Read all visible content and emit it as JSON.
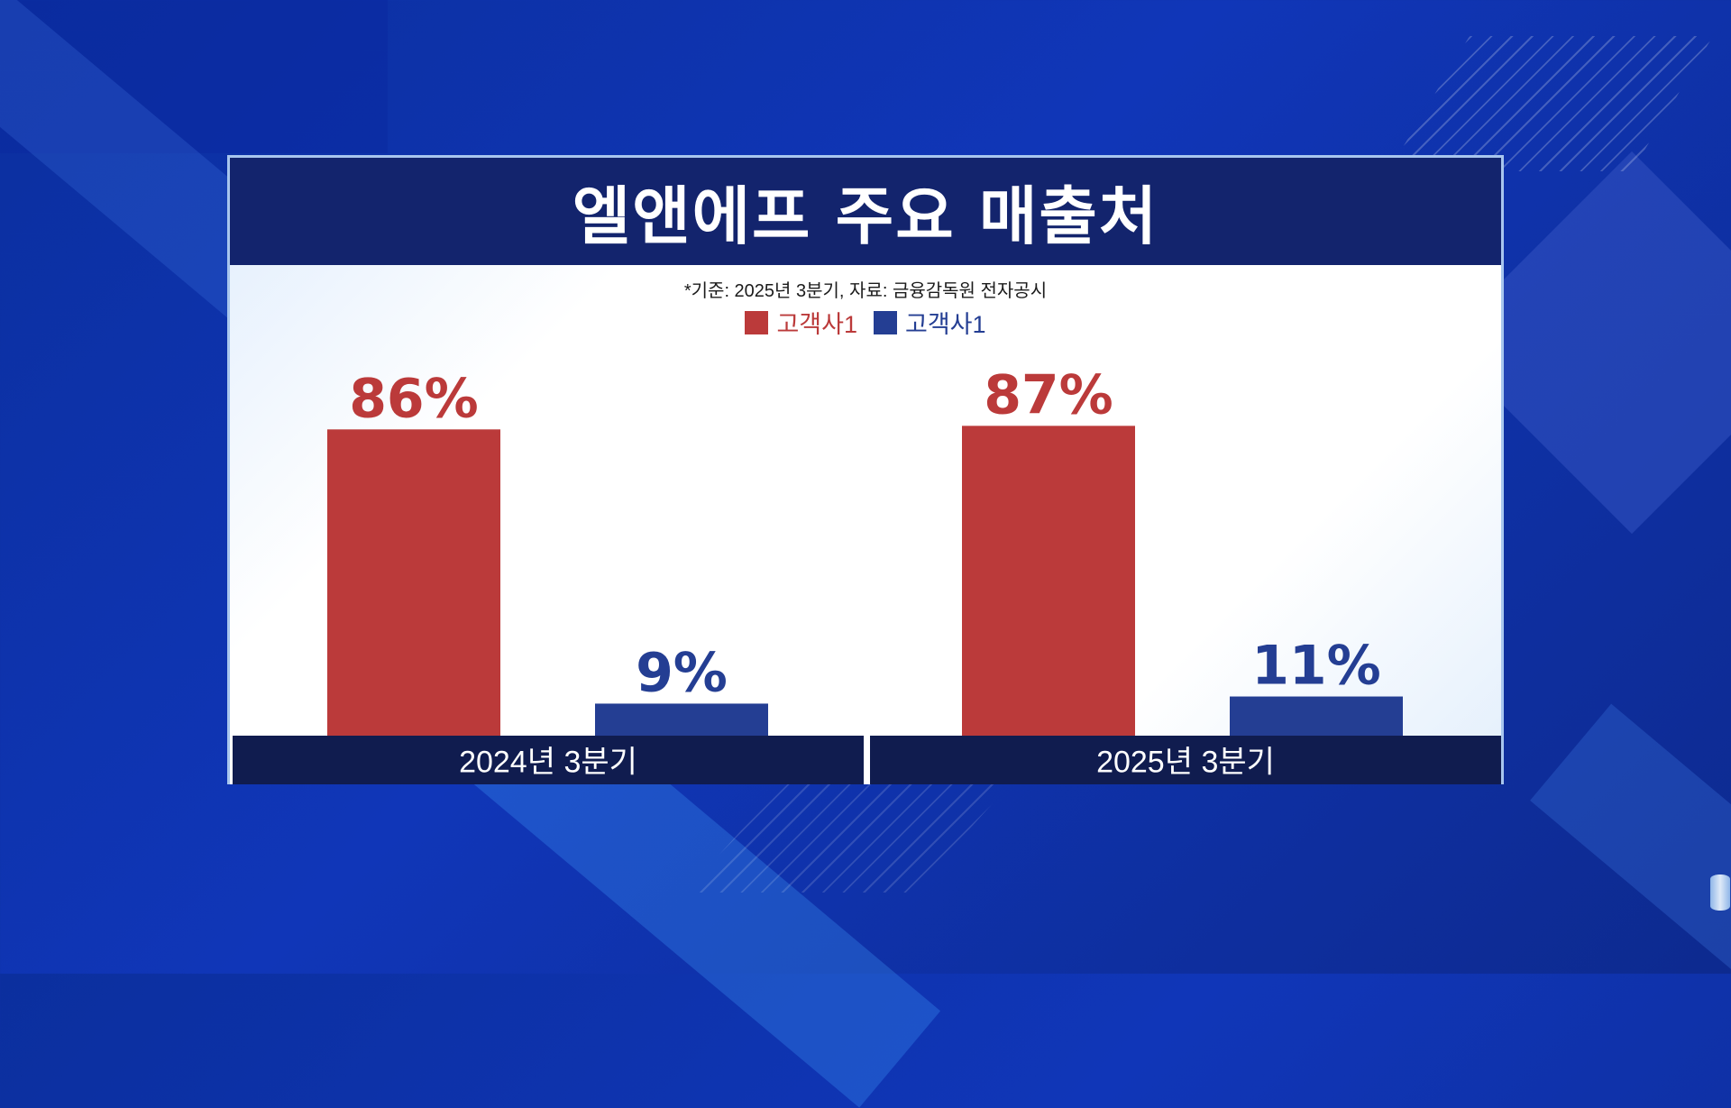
{
  "chart_data": {
    "type": "bar",
    "title": "엘앤에프 주요 매출처",
    "subtitle": "*기준: 2025년 3분기, 자료: 금융감독원 전자공시",
    "categories": [
      "2024년 3분기",
      "2025년 3분기"
    ],
    "series": [
      {
        "name": "고객사1",
        "color": "#bb3a3a",
        "values": [
          86,
          87
        ],
        "labels": [
          "86%",
          "87%"
        ]
      },
      {
        "name": "고객사1",
        "color": "#243e93",
        "values": [
          9,
          11
        ],
        "labels": [
          "9%",
          "11%"
        ]
      }
    ],
    "ylim": [
      0,
      100
    ],
    "unit": "%",
    "legend": "top-center",
    "grid": false
  },
  "colors": {
    "title_bar": "#13246d",
    "category_bar": "#101c4f",
    "frame": "#a8c6ee"
  }
}
